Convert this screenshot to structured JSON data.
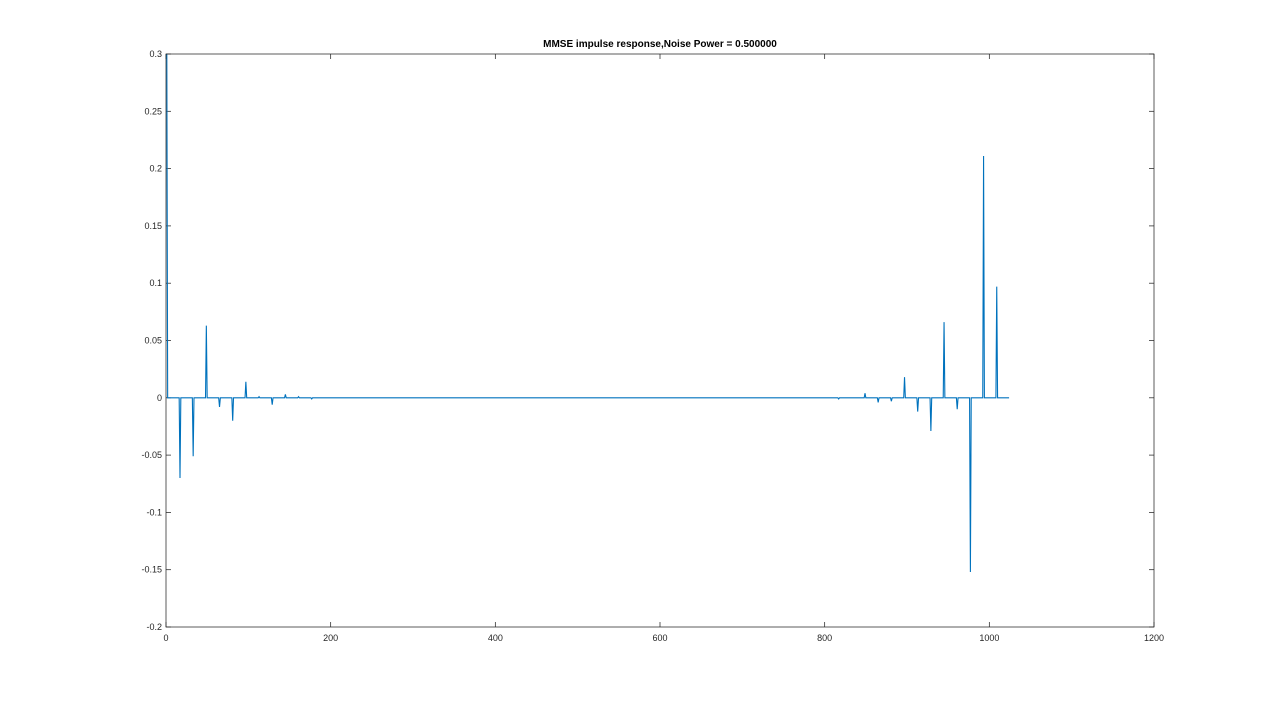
{
  "chart_data": {
    "type": "line",
    "title": "MMSE impulse response,Noise Power = 0.500000",
    "xlabel": "",
    "ylabel": "",
    "xlim": [
      0,
      1200
    ],
    "ylim": [
      -0.2,
      0.3
    ],
    "xticks": [
      0,
      200,
      400,
      600,
      800,
      1000,
      1200
    ],
    "xtick_labels": [
      "0",
      "200",
      "400",
      "600",
      "800",
      "1000",
      "1200"
    ],
    "yticks": [
      -0.2,
      -0.15,
      -0.1,
      -0.05,
      0,
      0.05,
      0.1,
      0.15,
      0.2,
      0.25,
      0.3
    ],
    "ytick_labels": [
      "-0.2",
      "-0.15",
      "-0.1",
      "-0.05",
      "0",
      "0.05",
      "0.1",
      "0.15",
      "0.2",
      "0.25",
      "0.3"
    ],
    "grid": false,
    "line_color": "#0072BD",
    "series": [
      {
        "name": "",
        "spikes": [
          {
            "x": 1,
            "y": 0.3
          },
          {
            "x": 17,
            "y": -0.07
          },
          {
            "x": 33,
            "y": -0.051
          },
          {
            "x": 49,
            "y": 0.063
          },
          {
            "x": 65,
            "y": -0.008
          },
          {
            "x": 81,
            "y": -0.02
          },
          {
            "x": 97,
            "y": 0.014
          },
          {
            "x": 113,
            "y": 0.001
          },
          {
            "x": 129,
            "y": -0.006
          },
          {
            "x": 145,
            "y": 0.003
          },
          {
            "x": 161,
            "y": 0.001
          },
          {
            "x": 177,
            "y": -0.001
          },
          {
            "x": 817,
            "y": -0.001
          },
          {
            "x": 849,
            "y": 0.004
          },
          {
            "x": 865,
            "y": -0.004
          },
          {
            "x": 881,
            "y": -0.003
          },
          {
            "x": 897,
            "y": 0.018
          },
          {
            "x": 913,
            "y": -0.012
          },
          {
            "x": 929,
            "y": -0.029
          },
          {
            "x": 945,
            "y": 0.066
          },
          {
            "x": 961,
            "y": -0.01
          },
          {
            "x": 977,
            "y": -0.152
          },
          {
            "x": 993,
            "y": 0.211
          },
          {
            "x": 1009,
            "y": 0.097
          }
        ],
        "x_start": 1,
        "x_end": 1024,
        "baseline": 0
      }
    ]
  }
}
